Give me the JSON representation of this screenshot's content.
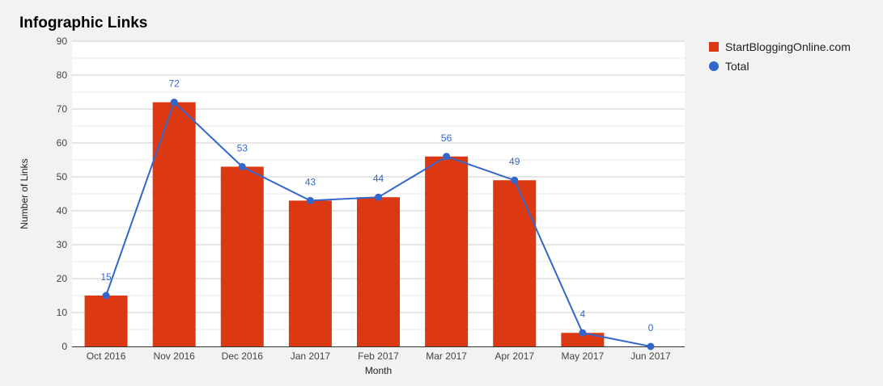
{
  "chart_data": {
    "type": "bar",
    "title": "Infographic Links",
    "xlabel": "Month",
    "ylabel": "Number of Links",
    "ylim": [
      0,
      90
    ],
    "yticks": [
      0,
      10,
      20,
      30,
      40,
      50,
      60,
      70,
      80,
      90
    ],
    "grid": true,
    "legend_position": "right",
    "categories": [
      "Oct 2016",
      "Nov 2016",
      "Dec 2016",
      "Jan 2017",
      "Feb 2017",
      "Mar 2017",
      "Apr 2017",
      "May 2017",
      "Jun 2017"
    ],
    "series": [
      {
        "name": "StartBloggingOnline.com",
        "type": "bar",
        "color": "#dc3912",
        "values": [
          15,
          72,
          53,
          43,
          44,
          56,
          49,
          4,
          0
        ]
      },
      {
        "name": "Total",
        "type": "line",
        "color": "#3366cc",
        "values": [
          15,
          72,
          53,
          43,
          44,
          56,
          49,
          4,
          0
        ],
        "data_labels": [
          "15",
          "72",
          "53",
          "43",
          "44",
          "56",
          "49",
          "4",
          "0"
        ]
      }
    ]
  }
}
